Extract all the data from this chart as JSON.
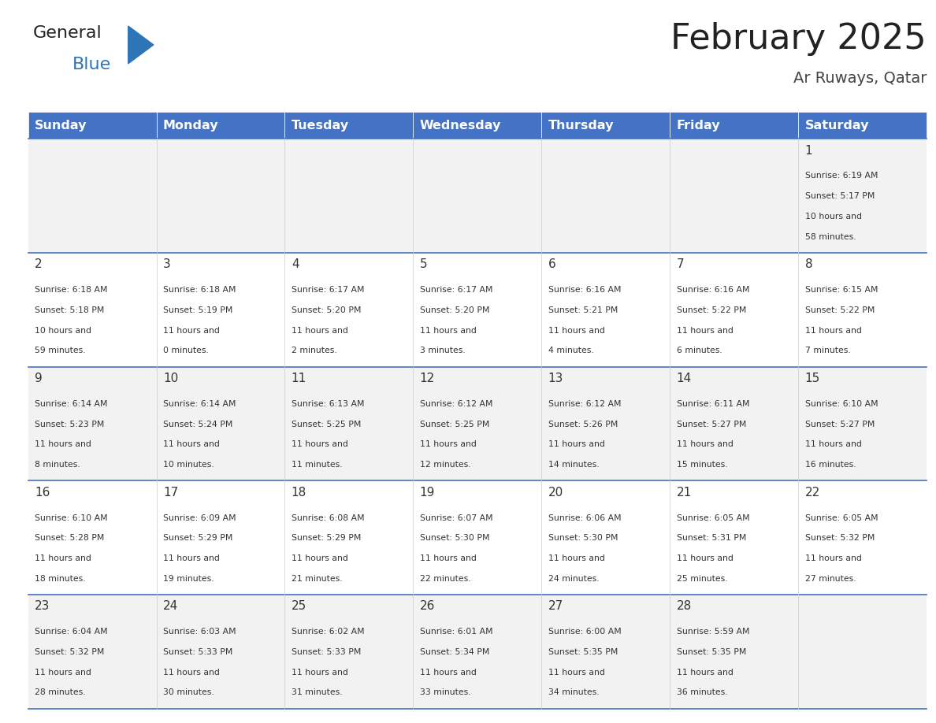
{
  "title": "February 2025",
  "subtitle": "Ar Ruways, Qatar",
  "days_of_week": [
    "Sunday",
    "Monday",
    "Tuesday",
    "Wednesday",
    "Thursday",
    "Friday",
    "Saturday"
  ],
  "header_bg": "#4472C4",
  "header_text": "#FFFFFF",
  "row_bg_odd": "#F2F2F2",
  "row_bg_even": "#FFFFFF",
  "cell_border": "#4472C4",
  "day_num_color": "#333333",
  "info_color": "#333333",
  "title_color": "#222222",
  "subtitle_color": "#444444",
  "logo_general_color": "#222222",
  "logo_blue_color": "#2E75B6",
  "calendar_data": [
    [
      null,
      null,
      null,
      null,
      null,
      null,
      {
        "day": 1,
        "sunrise": "6:19 AM",
        "sunset": "5:17 PM",
        "daylight": "10 hours and 58 minutes"
      }
    ],
    [
      {
        "day": 2,
        "sunrise": "6:18 AM",
        "sunset": "5:18 PM",
        "daylight": "10 hours and 59 minutes"
      },
      {
        "day": 3,
        "sunrise": "6:18 AM",
        "sunset": "5:19 PM",
        "daylight": "11 hours and 0 minutes"
      },
      {
        "day": 4,
        "sunrise": "6:17 AM",
        "sunset": "5:20 PM",
        "daylight": "11 hours and 2 minutes"
      },
      {
        "day": 5,
        "sunrise": "6:17 AM",
        "sunset": "5:20 PM",
        "daylight": "11 hours and 3 minutes"
      },
      {
        "day": 6,
        "sunrise": "6:16 AM",
        "sunset": "5:21 PM",
        "daylight": "11 hours and 4 minutes"
      },
      {
        "day": 7,
        "sunrise": "6:16 AM",
        "sunset": "5:22 PM",
        "daylight": "11 hours and 6 minutes"
      },
      {
        "day": 8,
        "sunrise": "6:15 AM",
        "sunset": "5:22 PM",
        "daylight": "11 hours and 7 minutes"
      }
    ],
    [
      {
        "day": 9,
        "sunrise": "6:14 AM",
        "sunset": "5:23 PM",
        "daylight": "11 hours and 8 minutes"
      },
      {
        "day": 10,
        "sunrise": "6:14 AM",
        "sunset": "5:24 PM",
        "daylight": "11 hours and 10 minutes"
      },
      {
        "day": 11,
        "sunrise": "6:13 AM",
        "sunset": "5:25 PM",
        "daylight": "11 hours and 11 minutes"
      },
      {
        "day": 12,
        "sunrise": "6:12 AM",
        "sunset": "5:25 PM",
        "daylight": "11 hours and 12 minutes"
      },
      {
        "day": 13,
        "sunrise": "6:12 AM",
        "sunset": "5:26 PM",
        "daylight": "11 hours and 14 minutes"
      },
      {
        "day": 14,
        "sunrise": "6:11 AM",
        "sunset": "5:27 PM",
        "daylight": "11 hours and 15 minutes"
      },
      {
        "day": 15,
        "sunrise": "6:10 AM",
        "sunset": "5:27 PM",
        "daylight": "11 hours and 16 minutes"
      }
    ],
    [
      {
        "day": 16,
        "sunrise": "6:10 AM",
        "sunset": "5:28 PM",
        "daylight": "11 hours and 18 minutes"
      },
      {
        "day": 17,
        "sunrise": "6:09 AM",
        "sunset": "5:29 PM",
        "daylight": "11 hours and 19 minutes"
      },
      {
        "day": 18,
        "sunrise": "6:08 AM",
        "sunset": "5:29 PM",
        "daylight": "11 hours and 21 minutes"
      },
      {
        "day": 19,
        "sunrise": "6:07 AM",
        "sunset": "5:30 PM",
        "daylight": "11 hours and 22 minutes"
      },
      {
        "day": 20,
        "sunrise": "6:06 AM",
        "sunset": "5:30 PM",
        "daylight": "11 hours and 24 minutes"
      },
      {
        "day": 21,
        "sunrise": "6:05 AM",
        "sunset": "5:31 PM",
        "daylight": "11 hours and 25 minutes"
      },
      {
        "day": 22,
        "sunrise": "6:05 AM",
        "sunset": "5:32 PM",
        "daylight": "11 hours and 27 minutes"
      }
    ],
    [
      {
        "day": 23,
        "sunrise": "6:04 AM",
        "sunset": "5:32 PM",
        "daylight": "11 hours and 28 minutes"
      },
      {
        "day": 24,
        "sunrise": "6:03 AM",
        "sunset": "5:33 PM",
        "daylight": "11 hours and 30 minutes"
      },
      {
        "day": 25,
        "sunrise": "6:02 AM",
        "sunset": "5:33 PM",
        "daylight": "11 hours and 31 minutes"
      },
      {
        "day": 26,
        "sunrise": "6:01 AM",
        "sunset": "5:34 PM",
        "daylight": "11 hours and 33 minutes"
      },
      {
        "day": 27,
        "sunrise": "6:00 AM",
        "sunset": "5:35 PM",
        "daylight": "11 hours and 34 minutes"
      },
      {
        "day": 28,
        "sunrise": "5:59 AM",
        "sunset": "5:35 PM",
        "daylight": "11 hours and 36 minutes"
      },
      null
    ]
  ]
}
